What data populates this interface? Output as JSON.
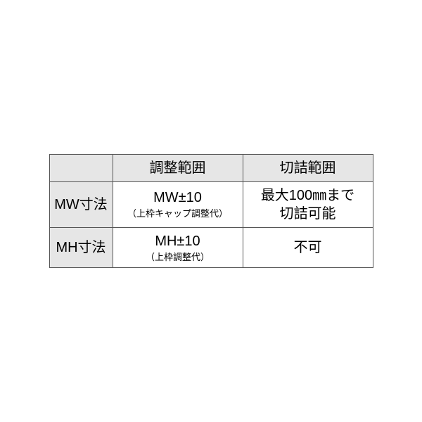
{
  "table": {
    "colors": {
      "header_bg": "#e6e6e6",
      "border": "#555555",
      "text": "#333333",
      "background": "#ffffff"
    },
    "font_sizes": {
      "header": 20,
      "main": 20,
      "sub": 13
    },
    "columns": {
      "corner": "",
      "c1": "調整範囲",
      "c2": "切詰範囲"
    },
    "rows": [
      {
        "label": "MW寸法",
        "c1_main": "MW±10",
        "c1_sub": "（上枠キャップ調整代）",
        "c2_l1": "最大100㎜まで",
        "c2_l2": "切詰可能"
      },
      {
        "label": "MH寸法",
        "c1_main": "MH±10",
        "c1_sub": "（上枠調整代）",
        "c2": "不可"
      }
    ]
  }
}
